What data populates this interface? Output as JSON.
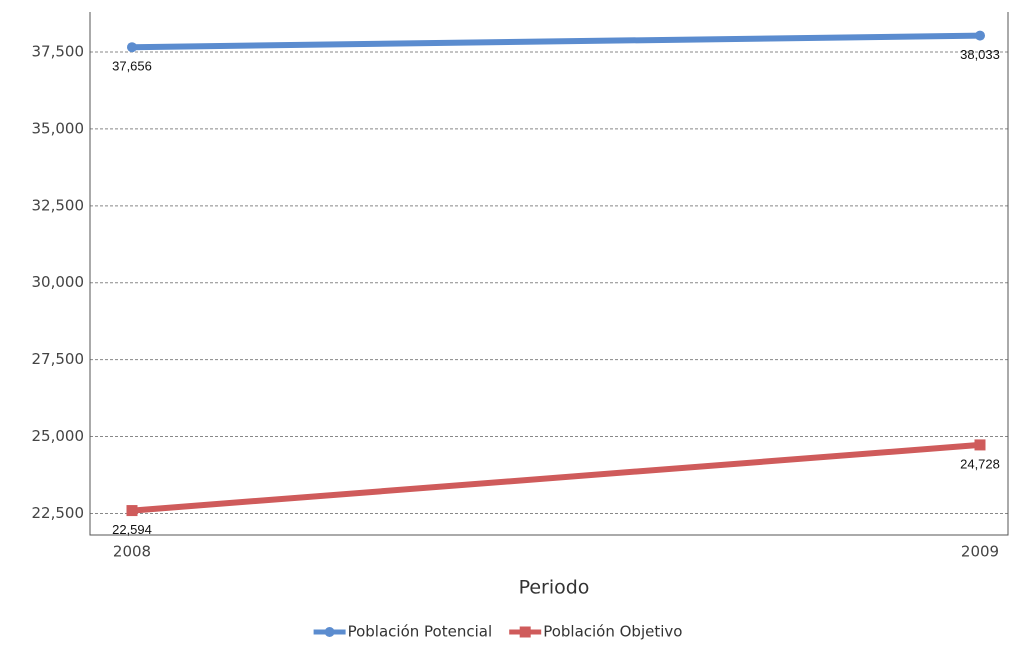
{
  "chart_data": {
    "type": "line",
    "x_label": "Periodo",
    "categories": [
      "2008",
      "2009"
    ],
    "series": [
      {
        "name": "Población Potencial",
        "color": "#5b8ccf",
        "marker": "circle",
        "values": [
          37656,
          38033
        ],
        "value_labels": [
          "37,656",
          "38,033"
        ]
      },
      {
        "name": "Población Objetivo",
        "color": "#cf5b5b",
        "marker": "square",
        "values": [
          22594,
          24728
        ],
        "value_labels": [
          "22,594",
          "24,728"
        ]
      }
    ],
    "ylim": [
      21800,
      38800
    ],
    "yticks": [
      {
        "value": 22500,
        "label": "22,500"
      },
      {
        "value": 25000,
        "label": "25,000"
      },
      {
        "value": 27500,
        "label": "27,500"
      },
      {
        "value": 30000,
        "label": "30,000"
      },
      {
        "value": 32500,
        "label": "32,500"
      },
      {
        "value": 35000,
        "label": "35,000"
      },
      {
        "value": 37500,
        "label": "37,500"
      }
    ],
    "grid": true,
    "legend": "bottom"
  }
}
